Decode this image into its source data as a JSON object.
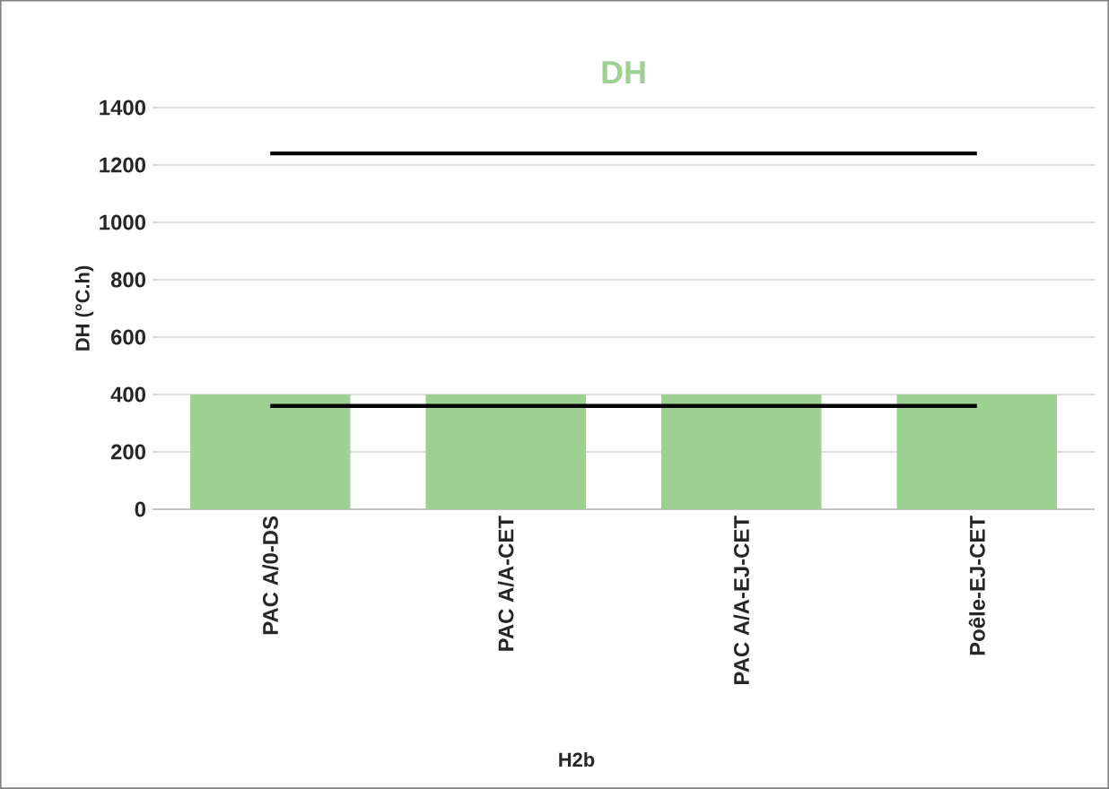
{
  "chart_data": {
    "type": "bar",
    "title": "DH",
    "xlabel": "H2b",
    "ylabel": "DH (°C.h)",
    "categories": [
      "PAC A/0-DS",
      "PAC A/A-CET",
      "PAC A/A-EJ-CET",
      "Poêle-EJ-CET"
    ],
    "series": [
      {
        "color": "#9dd191",
        "values": [
          400,
          400,
          400,
          400
        ]
      },
      {
        "type": "line",
        "color": "#000000",
        "values": [
          1240,
          1240,
          1240,
          1240
        ]
      },
      {
        "type": "line",
        "color": "#000000",
        "values": [
          360,
          360,
          360,
          360
        ]
      }
    ],
    "ylim": [
      0,
      1400
    ],
    "yticks": [
      0,
      200,
      400,
      600,
      800,
      1000,
      1200,
      1400
    ],
    "grid": "y",
    "marker": "none"
  }
}
